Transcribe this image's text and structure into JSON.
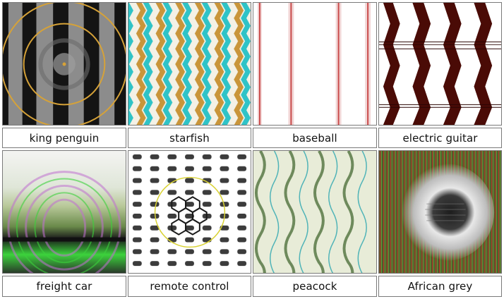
{
  "grid": {
    "images": [
      {
        "label": "king penguin",
        "pattern": "concentric-bands-icon",
        "colors": [
          "#141414",
          "#8c8c8c",
          "#d6a238"
        ]
      },
      {
        "label": "starfish",
        "pattern": "zigzag-stripes-icon",
        "colors": [
          "#2fc3c7",
          "#c9953a",
          "#f4f1e6"
        ]
      },
      {
        "label": "baseball",
        "pattern": "vertical-seam-stripes-icon",
        "colors": [
          "#ffffff",
          "#c94a4a",
          "#f2d6d6"
        ]
      },
      {
        "label": "electric guitar",
        "pattern": "chevron-bands-icon",
        "colors": [
          "#4a0b06",
          "#ffffff",
          "#2a0403"
        ]
      },
      {
        "label": "freight car",
        "pattern": "glitch-ripple-icon",
        "colors": [
          "#3cd23c",
          "#c070d0",
          "#f4f4f2"
        ]
      },
      {
        "label": "remote control",
        "pattern": "button-dot-grid-icon",
        "colors": [
          "#1a1a1a",
          "#ffffff",
          "#d9d233"
        ]
      },
      {
        "label": "peacock",
        "pattern": "feather-waves-icon",
        "colors": [
          "#6e8a5c",
          "#e8ecd8",
          "#2aa6b0"
        ]
      },
      {
        "label": "African grey",
        "pattern": "radial-grey-ring-icon",
        "colors": [
          "#1e1e1e",
          "#e8e8e8",
          "#c43a2a"
        ]
      }
    ]
  }
}
